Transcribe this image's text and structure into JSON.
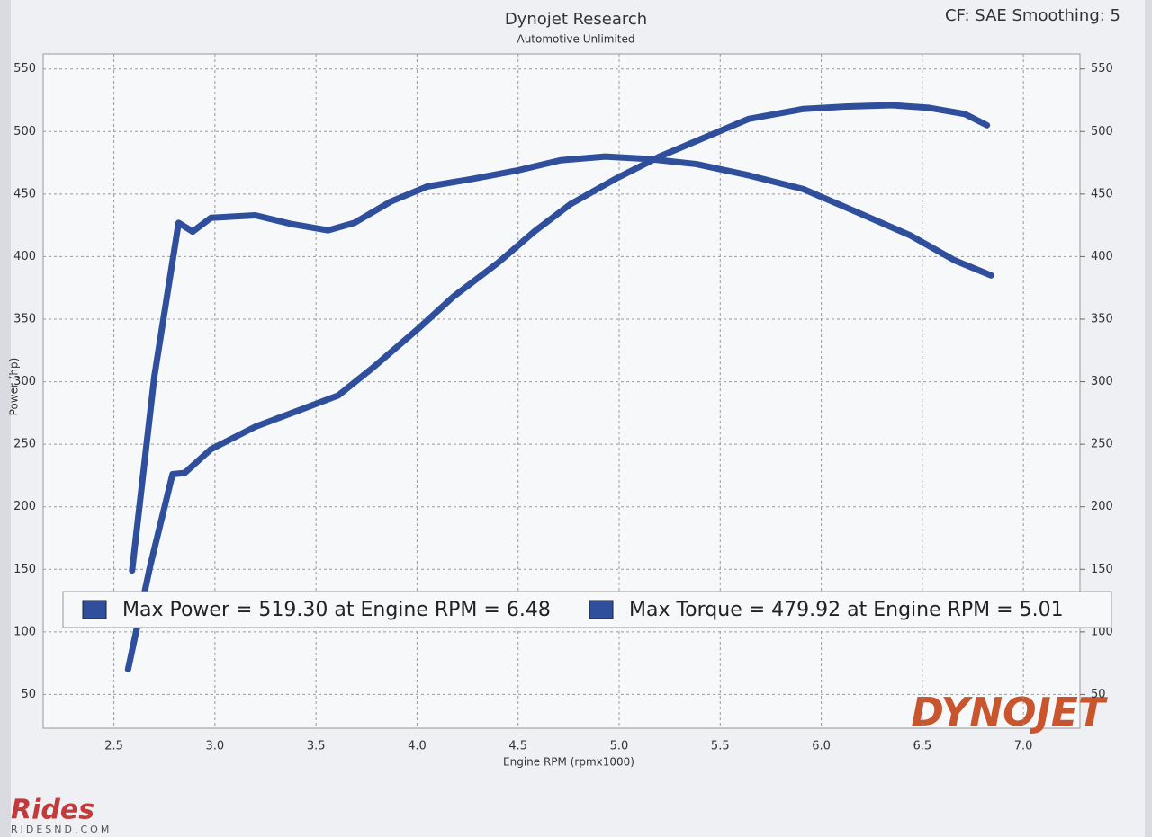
{
  "chart_data": {
    "type": "line",
    "title": "Dynojet Research",
    "subtitle": "Automotive Unlimited",
    "corner_note": "CF: SAE Smoothing: 5",
    "x_label": "Engine RPM (rpmx1000)",
    "y_label": "Power (hp)",
    "logo": "DYNOJET",
    "watermark": "Rides",
    "watermark_url": "RIDESND.COM",
    "grid": true,
    "xlim": [
      2.15,
      7.28
    ],
    "xticks": [
      2.5,
      {
        "value": 3,
        "label": "3.0"
      },
      3.5,
      {
        "value": 4,
        "label": "4.0"
      },
      4.5,
      {
        "value": 5,
        "label": "5.0"
      },
      5.5,
      {
        "value": 6,
        "label": "6.0"
      },
      6.5,
      {
        "value": 7,
        "label": "7.0"
      }
    ],
    "ylim": [
      23,
      562
    ],
    "yticks": [
      50,
      100,
      150,
      200,
      250,
      300,
      350,
      400,
      450,
      500,
      550
    ],
    "y2lim": [
      23,
      562
    ],
    "y2ticks": [
      50,
      100,
      150,
      200,
      250,
      300,
      350,
      400,
      450,
      500,
      550
    ],
    "series": [
      {
        "name": "Max Power = 519.30 at Engine RPM = 6.48",
        "color": "#2f4f9c",
        "x": [
          2.57,
          2.68,
          2.79,
          2.85,
          2.98,
          3.2,
          3.43,
          3.61,
          3.78,
          4.01,
          4.18,
          4.4,
          4.58,
          4.76,
          4.98,
          5.2,
          5.42,
          5.64,
          5.91,
          6.13,
          6.35,
          6.53,
          6.71,
          6.82
        ],
        "values": [
          70,
          153,
          226,
          227,
          246,
          264,
          278,
          289,
          311,
          343,
          368,
          395,
          420,
          442,
          462,
          480,
          495,
          510,
          518,
          520,
          521,
          519,
          514,
          505
        ]
      },
      {
        "name": "Max Torque = 479.92 at Engine RPM = 5.01",
        "color": "#2f4f9c",
        "axis": "y2",
        "x": [
          2.59,
          2.7,
          2.82,
          2.89,
          2.98,
          3.2,
          3.38,
          3.56,
          3.69,
          3.87,
          4.05,
          4.27,
          4.5,
          4.71,
          4.93,
          5.15,
          5.38,
          5.64,
          5.91,
          6.17,
          6.44,
          6.66,
          6.84
        ],
        "values": [
          149,
          304,
          427,
          420,
          431,
          433,
          426,
          421,
          427,
          444,
          456,
          462,
          469,
          477,
          480,
          478,
          474,
          465,
          454,
          436,
          417,
          397,
          385
        ]
      }
    ]
  }
}
